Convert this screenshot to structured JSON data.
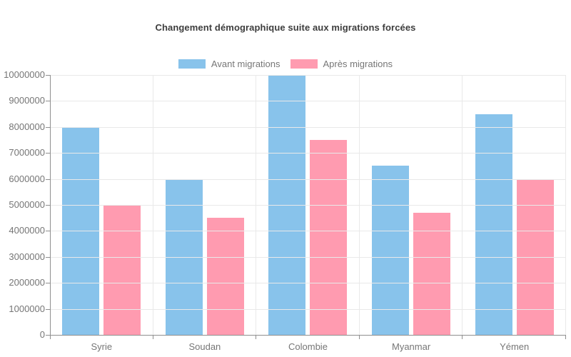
{
  "chart_data": {
    "type": "bar",
    "title": "Changement démographique suite aux migrations forcées",
    "categories": [
      "Syrie",
      "Soudan",
      "Colombie",
      "Myanmar",
      "Yémen"
    ],
    "series": [
      {
        "name": "Avant migrations",
        "color": "#88C3EB",
        "values": [
          8000000,
          6000000,
          10000000,
          6500000,
          8500000
        ]
      },
      {
        "name": "Après migrations",
        "color": "#FF9BB0",
        "values": [
          5000000,
          4500000,
          7500000,
          4700000,
          6000000
        ]
      }
    ],
    "xlabel": "",
    "ylabel": "",
    "ylim": [
      0,
      10000000
    ],
    "y_tick_step": 1000000,
    "y_tick_labels": [
      "0",
      "1000000",
      "2000000",
      "3000000",
      "4000000",
      "5000000",
      "6000000",
      "7000000",
      "8000000",
      "9000000",
      "10000000"
    ],
    "grid": true,
    "legend_position": "top-center"
  },
  "style": {
    "background": "#ffffff",
    "grid_color": "#e9e9e9",
    "axis_line_color": "#8f8f8f",
    "tick_color": "#8f8f8f",
    "text_color": "#767676",
    "title_color": "#3d3d3d"
  }
}
